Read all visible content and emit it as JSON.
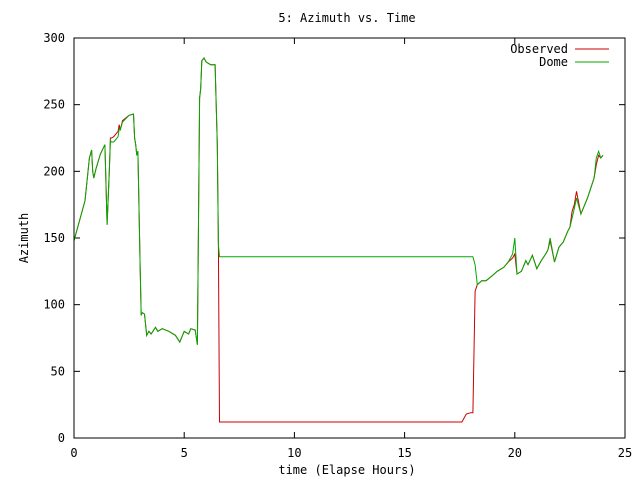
{
  "chart_data": {
    "type": "line",
    "title": "5: Azimuth vs. Time",
    "xlabel": "time (Elapse Hours)",
    "ylabel": "Azimuth",
    "xlim": [
      0,
      25
    ],
    "ylim": [
      0,
      300
    ],
    "xticks": [
      0,
      5,
      10,
      15,
      20,
      25
    ],
    "yticks": [
      0,
      50,
      100,
      150,
      200,
      250,
      300
    ],
    "grid": false,
    "legend_position": "top-right",
    "series": [
      {
        "name": "Observed",
        "color": "#cc0000",
        "x": [
          0.0,
          0.2,
          0.5,
          0.7,
          0.8,
          0.85,
          0.9,
          1.0,
          1.2,
          1.4,
          1.5,
          1.6,
          1.65,
          1.7,
          1.8,
          2.0,
          2.05,
          2.1,
          2.2,
          2.5,
          2.7,
          2.75,
          2.8,
          2.85,
          2.9,
          3.0,
          3.05,
          3.1,
          3.2,
          3.3,
          3.4,
          3.5,
          3.7,
          3.8,
          4.0,
          4.3,
          4.6,
          4.8,
          5.0,
          5.2,
          5.3,
          5.5,
          5.6,
          5.7,
          5.75,
          5.8,
          5.9,
          6.0,
          6.2,
          6.4,
          6.5,
          6.55,
          6.6,
          6.65,
          6.7,
          8.0,
          10.0,
          12.0,
          14.0,
          16.0,
          17.0,
          17.6,
          17.8,
          18.0,
          18.1,
          18.2,
          18.3,
          18.5,
          18.7,
          19.0,
          19.2,
          19.5,
          19.7,
          19.9,
          20.0,
          20.1,
          20.3,
          20.5,
          20.6,
          20.8,
          21.0,
          21.2,
          21.4,
          21.5,
          21.6,
          21.8,
          22.0,
          22.2,
          22.4,
          22.5,
          22.6,
          22.7,
          22.8,
          23.0,
          23.1,
          23.3,
          23.5,
          23.6,
          23.7,
          23.8,
          23.9,
          24.0
        ],
        "y": [
          148,
          160,
          178,
          210,
          216,
          200,
          195,
          202,
          213,
          220,
          160,
          200,
          225,
          225,
          226,
          230,
          235,
          231,
          238,
          242,
          243,
          225,
          220,
          212,
          215,
          130,
          92,
          94,
          93,
          77,
          80,
          78,
          83,
          80,
          82,
          80,
          77,
          72,
          80,
          78,
          82,
          81,
          70,
          255,
          262,
          283,
          285,
          282,
          280,
          280,
          220,
          145,
          12,
          12,
          12,
          12,
          12,
          12,
          12,
          12,
          12,
          12,
          18,
          19,
          19,
          110,
          115,
          118,
          118,
          122,
          125,
          128,
          132,
          135,
          138,
          123,
          125,
          133,
          130,
          137,
          127,
          133,
          138,
          141,
          148,
          132,
          143,
          147,
          155,
          158,
          170,
          175,
          185,
          168,
          172,
          180,
          190,
          195,
          205,
          212,
          210,
          212
        ]
      },
      {
        "name": "Dome",
        "color": "#00aa00",
        "x": [
          0.0,
          0.2,
          0.5,
          0.7,
          0.8,
          0.85,
          0.9,
          1.0,
          1.2,
          1.4,
          1.5,
          1.6,
          1.65,
          1.7,
          1.8,
          2.0,
          2.05,
          2.1,
          2.2,
          2.5,
          2.7,
          2.75,
          2.8,
          2.85,
          2.9,
          3.0,
          3.05,
          3.1,
          3.2,
          3.3,
          3.4,
          3.5,
          3.7,
          3.8,
          4.0,
          4.3,
          4.6,
          4.8,
          5.0,
          5.2,
          5.3,
          5.5,
          5.6,
          5.7,
          5.75,
          5.8,
          5.9,
          6.0,
          6.2,
          6.4,
          6.5,
          6.55,
          6.6,
          6.65,
          6.7,
          8.0,
          10.0,
          12.0,
          14.0,
          16.0,
          17.0,
          17.6,
          17.8,
          18.0,
          18.1,
          18.2,
          18.3,
          18.5,
          18.7,
          19.0,
          19.2,
          19.5,
          19.7,
          19.9,
          20.0,
          20.1,
          20.3,
          20.5,
          20.6,
          20.8,
          21.0,
          21.2,
          21.4,
          21.5,
          21.6,
          21.8,
          22.0,
          22.2,
          22.4,
          22.5,
          22.6,
          22.7,
          22.8,
          23.0,
          23.1,
          23.3,
          23.5,
          23.6,
          23.7,
          23.8,
          23.9,
          24.0
        ],
        "y": [
          148,
          160,
          178,
          210,
          216,
          200,
          195,
          202,
          213,
          220,
          160,
          200,
          223,
          222,
          222,
          226,
          232,
          231,
          237,
          242,
          243,
          225,
          220,
          212,
          215,
          130,
          92,
          94,
          93,
          77,
          80,
          78,
          83,
          80,
          82,
          80,
          77,
          72,
          80,
          78,
          82,
          81,
          70,
          255,
          262,
          283,
          285,
          282,
          280,
          280,
          220,
          145,
          136,
          136,
          136,
          136,
          136,
          136,
          136,
          136,
          136,
          136,
          136,
          136,
          136,
          130,
          115,
          118,
          118,
          122,
          125,
          128,
          132,
          138,
          150,
          123,
          125,
          133,
          130,
          137,
          127,
          133,
          138,
          141,
          150,
          132,
          143,
          147,
          155,
          158,
          165,
          172,
          180,
          168,
          172,
          180,
          190,
          195,
          210,
          215,
          210,
          212
        ]
      }
    ]
  }
}
